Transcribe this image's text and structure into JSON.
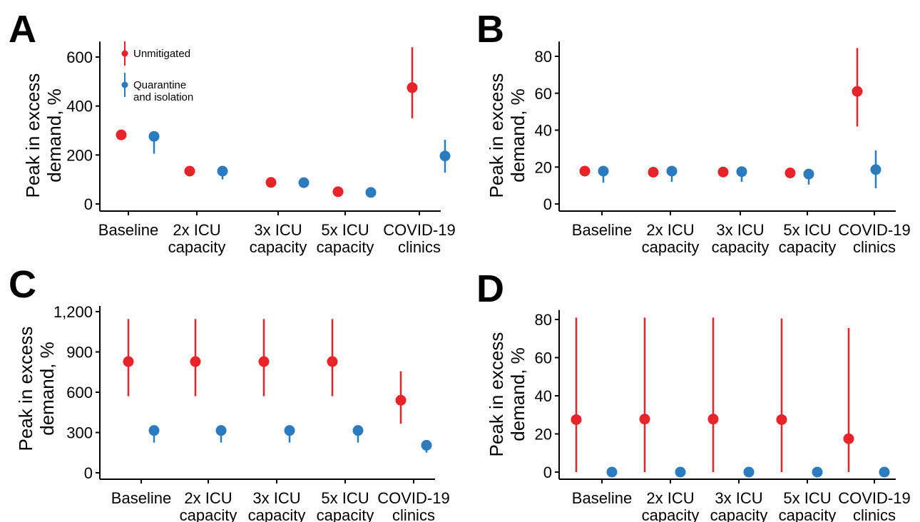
{
  "colors": {
    "unmitigated": "#e8232a",
    "quarantine": "#2b7bbf",
    "axis": "#000000"
  },
  "chart_data": [
    {
      "panel": "A",
      "type": "scatter",
      "ylabel": [
        "Peak in excess",
        "demand, %"
      ],
      "ylim": [
        0,
        640
      ],
      "yticks": [
        0,
        200,
        400,
        600
      ],
      "ytick_labels": [
        "0",
        "200",
        "400",
        "600"
      ],
      "categories": [
        [
          "Baseline"
        ],
        [
          "2x ICU",
          "capacity"
        ],
        [
          "3x ICU",
          "capacity"
        ],
        [
          "5x ICU",
          "capacity"
        ],
        [
          "COVID-19",
          "clinics"
        ]
      ],
      "legend": {
        "show": true,
        "placement": "top-left",
        "entries": [
          [
            "Unmitigated"
          ],
          [
            "Quarantine",
            "and isolation"
          ]
        ]
      },
      "series": [
        {
          "name": "Unmitigated",
          "color": "#e8232a",
          "values": [
            282,
            134,
            88,
            50,
            475
          ],
          "lower": [
            282,
            134,
            88,
            50,
            350
          ],
          "upper": [
            282,
            134,
            88,
            50,
            640
          ]
        },
        {
          "name": "Quarantine and isolation",
          "color": "#2b7bbf",
          "values": [
            276,
            134,
            87,
            47,
            196
          ],
          "lower": [
            205,
            100,
            65,
            40,
            128
          ],
          "upper": [
            276,
            134,
            87,
            47,
            262
          ]
        }
      ]
    },
    {
      "panel": "B",
      "type": "scatter",
      "ylabel": [
        "Peak in excess",
        "demand, %"
      ],
      "ylim": [
        0,
        85
      ],
      "yticks": [
        0,
        20,
        40,
        60,
        80
      ],
      "ytick_labels": [
        "0",
        "20",
        "40",
        "60",
        "80"
      ],
      "categories": [
        [
          "Baseline"
        ],
        [
          "2x ICU",
          "capacity"
        ],
        [
          "3x ICU",
          "capacity"
        ],
        [
          "5x ICU",
          "capacity"
        ],
        [
          "COVID-19",
          "clinics"
        ]
      ],
      "legend": {
        "show": false
      },
      "series": [
        {
          "name": "Unmitigated",
          "color": "#e8232a",
          "values": [
            17.8,
            17.2,
            17.3,
            16.8,
            61
          ],
          "lower": [
            17.8,
            17.2,
            17.3,
            16.8,
            42
          ],
          "upper": [
            17.8,
            17.2,
            17.3,
            16.8,
            84.5
          ]
        },
        {
          "name": "Quarantine and isolation",
          "color": "#2b7bbf",
          "values": [
            17.8,
            17.8,
            17.5,
            16.2,
            18.6
          ],
          "lower": [
            11.5,
            12,
            12,
            10.5,
            8.5
          ],
          "upper": [
            17.8,
            17.8,
            17.5,
            16.2,
            29
          ]
        }
      ]
    },
    {
      "panel": "C",
      "type": "scatter",
      "ylabel": [
        "Peak in excess",
        "demand, %"
      ],
      "ylim": [
        0,
        1200
      ],
      "yticks": [
        0,
        300,
        600,
        900,
        1200
      ],
      "ytick_labels": [
        "0",
        "300",
        "600",
        "900",
        "1,200"
      ],
      "categories": [
        [
          "Baseline"
        ],
        [
          "2x ICU",
          "capacity"
        ],
        [
          "3x ICU",
          "capacity"
        ],
        [
          "5x ICU",
          "capacity"
        ],
        [
          "COVID-19",
          "clinics"
        ]
      ],
      "legend": {
        "show": false
      },
      "series": [
        {
          "name": "Unmitigated",
          "color": "#e8232a",
          "values": [
            828,
            828,
            828,
            828,
            540
          ],
          "lower": [
            570,
            570,
            570,
            570,
            365
          ],
          "upper": [
            1145,
            1145,
            1145,
            1145,
            755
          ]
        },
        {
          "name": "Quarantine and isolation",
          "color": "#2b7bbf",
          "values": [
            315,
            315,
            315,
            315,
            205
          ],
          "lower": [
            225,
            225,
            225,
            225,
            150
          ],
          "upper": [
            340,
            340,
            340,
            340,
            205
          ]
        }
      ]
    },
    {
      "panel": "D",
      "type": "scatter",
      "ylabel": [
        "Peak in excess",
        "demand, %"
      ],
      "ylim": [
        0,
        82
      ],
      "yticks": [
        0,
        20,
        40,
        60,
        80
      ],
      "ytick_labels": [
        "0",
        "20",
        "40",
        "60",
        "80"
      ],
      "categories": [
        [
          "Baseline"
        ],
        [
          "2x ICU",
          "capacity"
        ],
        [
          "3x ICU",
          "capacity"
        ],
        [
          "5x ICU",
          "capacity"
        ],
        [
          "COVID-19",
          "clinics"
        ]
      ],
      "legend": {
        "show": false
      },
      "series": [
        {
          "name": "Unmitigated",
          "color": "#e8232a",
          "values": [
            27.5,
            27.8,
            27.8,
            27.5,
            17.5
          ],
          "lower": [
            0,
            0,
            0,
            0,
            0
          ],
          "upper": [
            81,
            81,
            81,
            80.5,
            75.5
          ]
        },
        {
          "name": "Quarantine and isolation",
          "color": "#2b7bbf",
          "values": [
            0,
            0,
            0,
            0,
            0
          ],
          "lower": [
            0,
            0,
            0,
            0,
            0
          ],
          "upper": [
            0,
            0,
            0,
            0,
            0
          ]
        }
      ]
    }
  ]
}
